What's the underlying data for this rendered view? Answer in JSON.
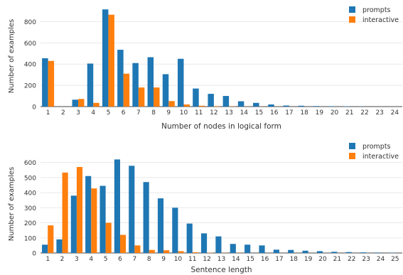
{
  "colors": {
    "prompts": "#1f77b4",
    "interactive": "#ff7f0e",
    "grid": "#e8e8e8",
    "axis": "#444444",
    "text": "#333333"
  },
  "chart_data": [
    {
      "type": "bar",
      "xlabel": "Number of nodes in logical form",
      "ylabel": "Number of examples",
      "ylim": [
        0,
        950
      ],
      "yticks": [
        0,
        200,
        400,
        600,
        800
      ],
      "legend_position": "top-right",
      "grid": true,
      "categories": [
        "1",
        "2",
        "3",
        "4",
        "5",
        "6",
        "7",
        "8",
        "9",
        "10",
        "11",
        "12",
        "13",
        "14",
        "15",
        "16",
        "17",
        "18",
        "19",
        "20",
        "21",
        "22",
        "23",
        "24"
      ],
      "series": [
        {
          "name": "prompts",
          "values": [
            455,
            0,
            65,
            405,
            915,
            535,
            410,
            465,
            305,
            450,
            170,
            120,
            100,
            50,
            35,
            20,
            10,
            8,
            5,
            4,
            3,
            2,
            1,
            1
          ]
        },
        {
          "name": "interactive",
          "values": [
            430,
            0,
            72,
            35,
            865,
            310,
            180,
            180,
            52,
            20,
            8,
            4,
            2,
            1,
            1,
            1,
            0,
            0,
            0,
            0,
            0,
            0,
            0,
            0
          ]
        }
      ]
    },
    {
      "type": "bar",
      "xlabel": "Sentence length",
      "ylabel": "Number of examples",
      "ylim": [
        0,
        650
      ],
      "yticks": [
        0,
        100,
        200,
        300,
        400,
        500,
        600
      ],
      "legend_position": "top-right",
      "grid": true,
      "categories": [
        "1",
        "2",
        "3",
        "4",
        "5",
        "6",
        "7",
        "8",
        "9",
        "10",
        "11",
        "12",
        "13",
        "14",
        "15",
        "16",
        "17",
        "18",
        "19",
        "20",
        "21",
        "22",
        "23",
        "24",
        "25"
      ],
      "series": [
        {
          "name": "prompts",
          "values": [
            55,
            90,
            380,
            510,
            445,
            620,
            578,
            470,
            362,
            300,
            195,
            130,
            110,
            60,
            55,
            50,
            22,
            20,
            15,
            12,
            8,
            6,
            4,
            3,
            2
          ]
        },
        {
          "name": "interactive",
          "values": [
            183,
            533,
            570,
            428,
            200,
            120,
            50,
            20,
            18,
            12,
            5,
            2,
            1,
            1,
            0,
            0,
            0,
            0,
            0,
            0,
            0,
            0,
            0,
            0,
            0
          ]
        }
      ]
    }
  ]
}
